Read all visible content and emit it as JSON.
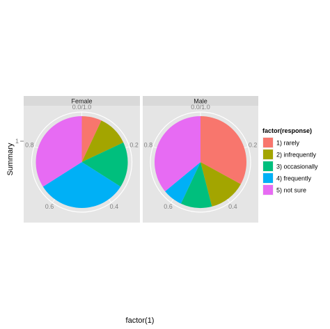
{
  "chart_data": {
    "type": "pie",
    "xlabel": "factor(1)",
    "ylabel": "Summary",
    "y_category_tick": "1",
    "theta_ticks": [
      "0.0/1.0",
      "0.2",
      "0.4",
      "0.6",
      "0.8"
    ],
    "legend": {
      "title": "factor(response)",
      "position": "right",
      "entries": [
        "1) rarely",
        "2) infrequently",
        "3) occasionally",
        "4) frequently",
        "5) not sure"
      ]
    },
    "categories": [
      "1) rarely",
      "2) infrequently",
      "3) occasionally",
      "4) frequently",
      "5) not sure"
    ],
    "colors": [
      "#F8766D",
      "#A3A500",
      "#00BF7D",
      "#00B0F6",
      "#E76BF3"
    ],
    "facets": [
      {
        "label": "Female",
        "values": [
          0.07,
          0.11,
          0.16,
          0.32,
          0.34
        ]
      },
      {
        "label": "Male",
        "values": [
          0.33,
          0.13,
          0.11,
          0.07,
          0.36
        ]
      }
    ],
    "grid": true
  }
}
